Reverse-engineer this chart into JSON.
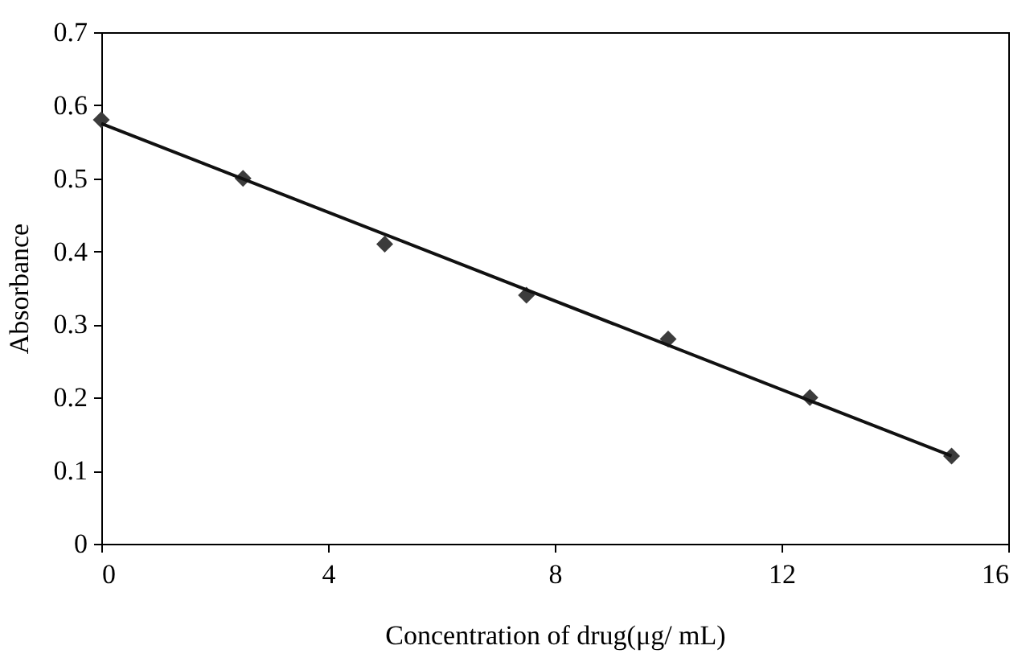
{
  "chart_data": {
    "type": "scatter",
    "xlabel": "Concentration of drug(μg/ mL)",
    "ylabel": "Absorbance",
    "xlim": [
      0,
      16
    ],
    "xticks": [
      0,
      4,
      8,
      12,
      16
    ],
    "ylim": [
      0,
      0.7
    ],
    "yticks": [
      0,
      0.1,
      0.2,
      0.3,
      0.4,
      0.5,
      0.6,
      0.7
    ],
    "grid": false,
    "series": [
      {
        "color": "#3c3c3c",
        "marker": "diamond",
        "x": [
          0,
          2.5,
          5,
          7.5,
          10,
          12.5,
          15
        ],
        "values": [
          0.58,
          0.5,
          0.41,
          0.34,
          0.28,
          0.2,
          0.12
        ]
      },
      {
        "type": "line",
        "color": "#111111",
        "line_style": "solid",
        "x": [
          0,
          15
        ],
        "values": [
          0.575,
          0.12
        ]
      }
    ]
  }
}
